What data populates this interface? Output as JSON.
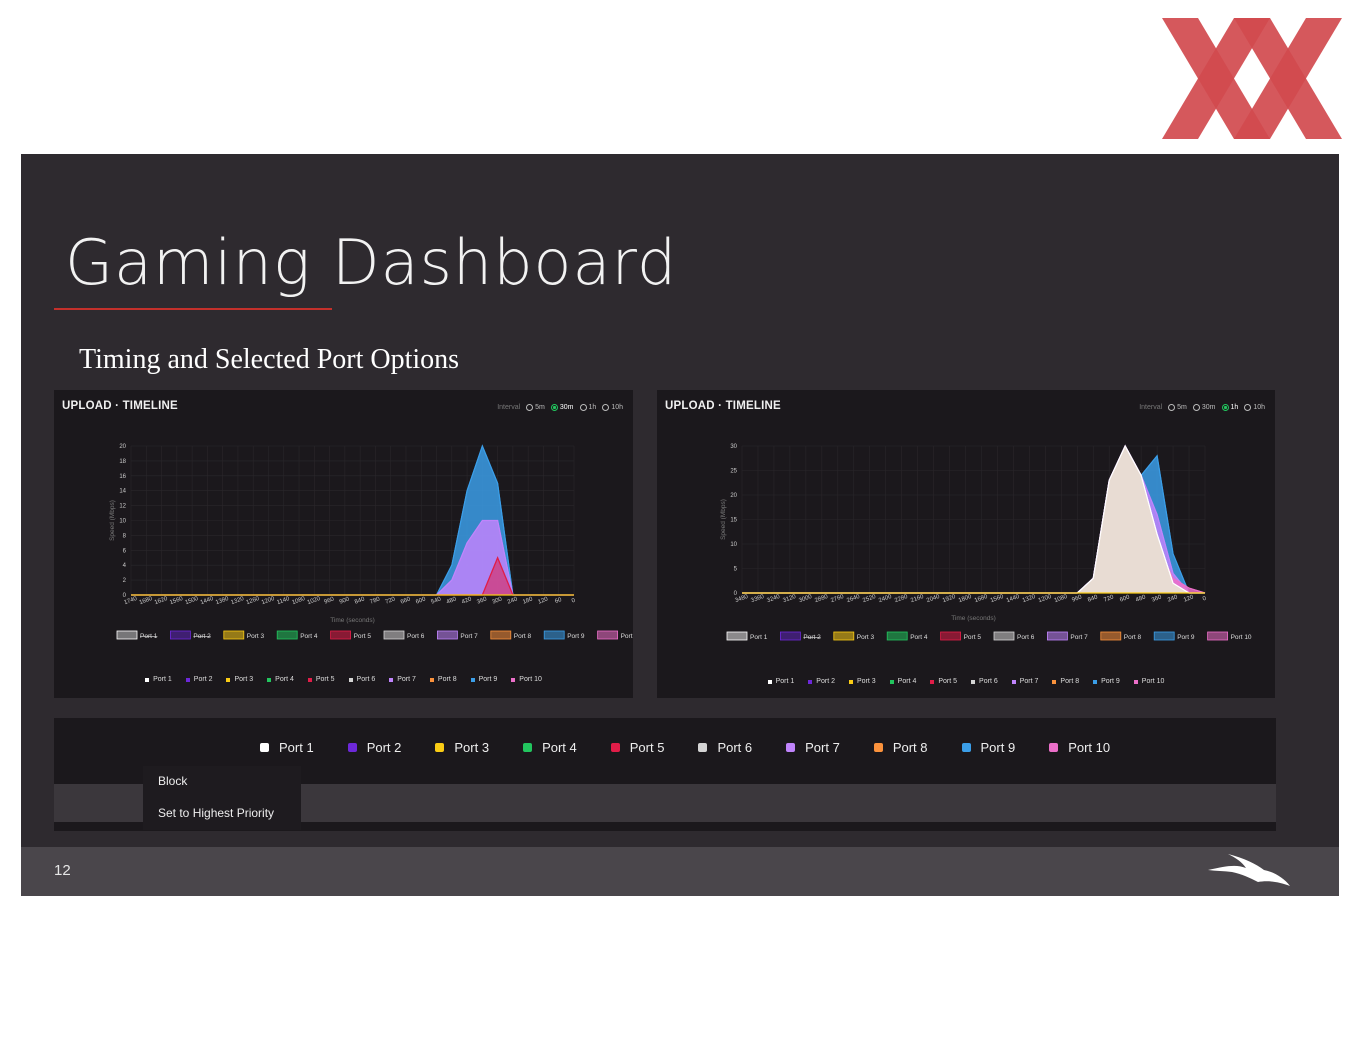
{
  "logo": {
    "name": "red-x-logo",
    "color": "#d14a4e"
  },
  "slide": {
    "title": "Gaming Dashboard",
    "subtitle": "Timing and Selected Port Options",
    "accent": "#c4302b",
    "page_number": "12"
  },
  "ports": [
    {
      "name": "Port 1",
      "color": "#ffffff"
    },
    {
      "name": "Port 2",
      "color": "#6d28d9"
    },
    {
      "name": "Port 3",
      "color": "#facc15"
    },
    {
      "name": "Port 4",
      "color": "#22c55e"
    },
    {
      "name": "Port 5",
      "color": "#e11d48"
    },
    {
      "name": "Port 6",
      "color": "#d4d4d4"
    },
    {
      "name": "Port 7",
      "color": "#c084fc"
    },
    {
      "name": "Port 8",
      "color": "#fb923c"
    },
    {
      "name": "Port 9",
      "color": "#3b9ee8"
    },
    {
      "name": "Port 10",
      "color": "#ec6fc9"
    }
  ],
  "context_menu": {
    "items": [
      "Block",
      "Set to Highest Priority"
    ]
  },
  "panels": [
    {
      "title": "UPLOAD · TIMELINE",
      "interval_label": "Interval",
      "intervals": [
        "5m",
        "30m",
        "1h",
        "10h"
      ],
      "selected_interval": "30m"
    },
    {
      "title": "UPLOAD · TIMELINE",
      "interval_label": "Interval",
      "intervals": [
        "5m",
        "30m",
        "1h",
        "10h"
      ],
      "selected_interval": "1h"
    }
  ],
  "chart_data": [
    {
      "type": "area",
      "xlabel": "Time (seconds)",
      "ylabel": "Speed (Mbps)",
      "ylim": [
        0,
        20
      ],
      "yticks": [
        0,
        2,
        4,
        6,
        8,
        10,
        12,
        14,
        16,
        18,
        20
      ],
      "x": [
        1740,
        1680,
        1620,
        1560,
        1500,
        1440,
        1380,
        1320,
        1260,
        1200,
        1140,
        1080,
        1020,
        960,
        900,
        840,
        780,
        720,
        660,
        600,
        540,
        480,
        420,
        360,
        300,
        240,
        180,
        120,
        60,
        0
      ],
      "legend": [
        "Port 1",
        "Port 2",
        "Port 3",
        "Port 4",
        "Port 5",
        "Port 6",
        "Port 7",
        "Port 8",
        "Port 9",
        "Port 10"
      ],
      "hidden_series": [
        "Port 1",
        "Port 2"
      ],
      "series": [
        {
          "name": "Port 9",
          "values": [
            0,
            0,
            0,
            0,
            0,
            0,
            0,
            0,
            0,
            0,
            0,
            0,
            0,
            0,
            0,
            0,
            0,
            0,
            0,
            0,
            0,
            4,
            14,
            20,
            15,
            0,
            0,
            0,
            0,
            0
          ]
        },
        {
          "name": "Port 7",
          "values": [
            0,
            0,
            0,
            0,
            0,
            0,
            0,
            0,
            0,
            0,
            0,
            0,
            0,
            0,
            0,
            0,
            0,
            0,
            0,
            0,
            0,
            2,
            7,
            10,
            10,
            0,
            0,
            0,
            0,
            0
          ]
        },
        {
          "name": "Port 5",
          "values": [
            0,
            0,
            0,
            0,
            0,
            0,
            0,
            0,
            0,
            0,
            0,
            0,
            0,
            0,
            0,
            0,
            0,
            0,
            0,
            0,
            0,
            0,
            0,
            0,
            5,
            0,
            0,
            0,
            0,
            0
          ]
        },
        {
          "name": "Port 3",
          "values": [
            0,
            0,
            0,
            0,
            0,
            0,
            0,
            0,
            0,
            0,
            0,
            0,
            0,
            0,
            0,
            0,
            0,
            0,
            0,
            0,
            0,
            0,
            0,
            0,
            0,
            0,
            0,
            0,
            0,
            0
          ]
        }
      ]
    },
    {
      "type": "area",
      "xlabel": "Time (seconds)",
      "ylabel": "Speed (Mbps)",
      "ylim": [
        0,
        30
      ],
      "yticks": [
        0,
        5,
        10,
        15,
        20,
        25,
        30
      ],
      "x": [
        3480,
        3360,
        3240,
        3120,
        3000,
        2880,
        2760,
        2640,
        2520,
        2400,
        2280,
        2160,
        2040,
        1920,
        1800,
        1680,
        1560,
        1440,
        1320,
        1200,
        1080,
        960,
        840,
        720,
        600,
        480,
        360,
        240,
        120,
        0
      ],
      "legend": [
        "Port 1",
        "Port 2",
        "Port 3",
        "Port 4",
        "Port 5",
        "Port 6",
        "Port 7",
        "Port 8",
        "Port 9",
        "Port 10"
      ],
      "hidden_series": [
        "Port 2"
      ],
      "series": [
        {
          "name": "Port 9",
          "values": [
            0,
            0,
            0,
            0,
            0,
            0,
            0,
            0,
            0,
            0,
            0,
            0,
            0,
            0,
            0,
            0,
            0,
            0,
            0,
            0,
            0,
            0,
            3,
            23,
            30,
            24,
            28,
            8,
            0,
            0
          ]
        },
        {
          "name": "Port 7",
          "values": [
            0,
            0,
            0,
            0,
            0,
            0,
            0,
            0,
            0,
            0,
            0,
            0,
            0,
            0,
            0,
            0,
            0,
            0,
            0,
            0,
            0,
            0,
            3,
            23,
            30,
            24,
            16,
            4,
            0,
            0
          ]
        },
        {
          "name": "Port 10",
          "values": [
            0,
            0,
            0,
            0,
            0,
            0,
            0,
            0,
            0,
            0,
            0,
            0,
            0,
            0,
            0,
            0,
            0,
            0,
            0,
            0,
            0,
            0,
            3,
            23,
            30,
            24,
            10,
            3,
            1,
            0
          ]
        },
        {
          "name": "Port 1",
          "values": [
            0,
            0,
            0,
            0,
            0,
            0,
            0,
            0,
            0,
            0,
            0,
            0,
            0,
            0,
            0,
            0,
            0,
            0,
            0,
            0,
            0,
            0,
            3,
            23,
            30,
            24,
            12,
            2,
            0,
            0
          ]
        },
        {
          "name": "Port 3",
          "values": [
            0,
            0,
            0,
            0,
            0,
            0,
            0,
            0,
            0,
            0,
            0,
            0,
            0,
            0,
            0,
            0,
            0,
            0,
            0,
            0,
            0,
            0,
            0,
            0,
            0,
            0,
            0,
            0,
            0,
            0
          ]
        }
      ]
    }
  ]
}
